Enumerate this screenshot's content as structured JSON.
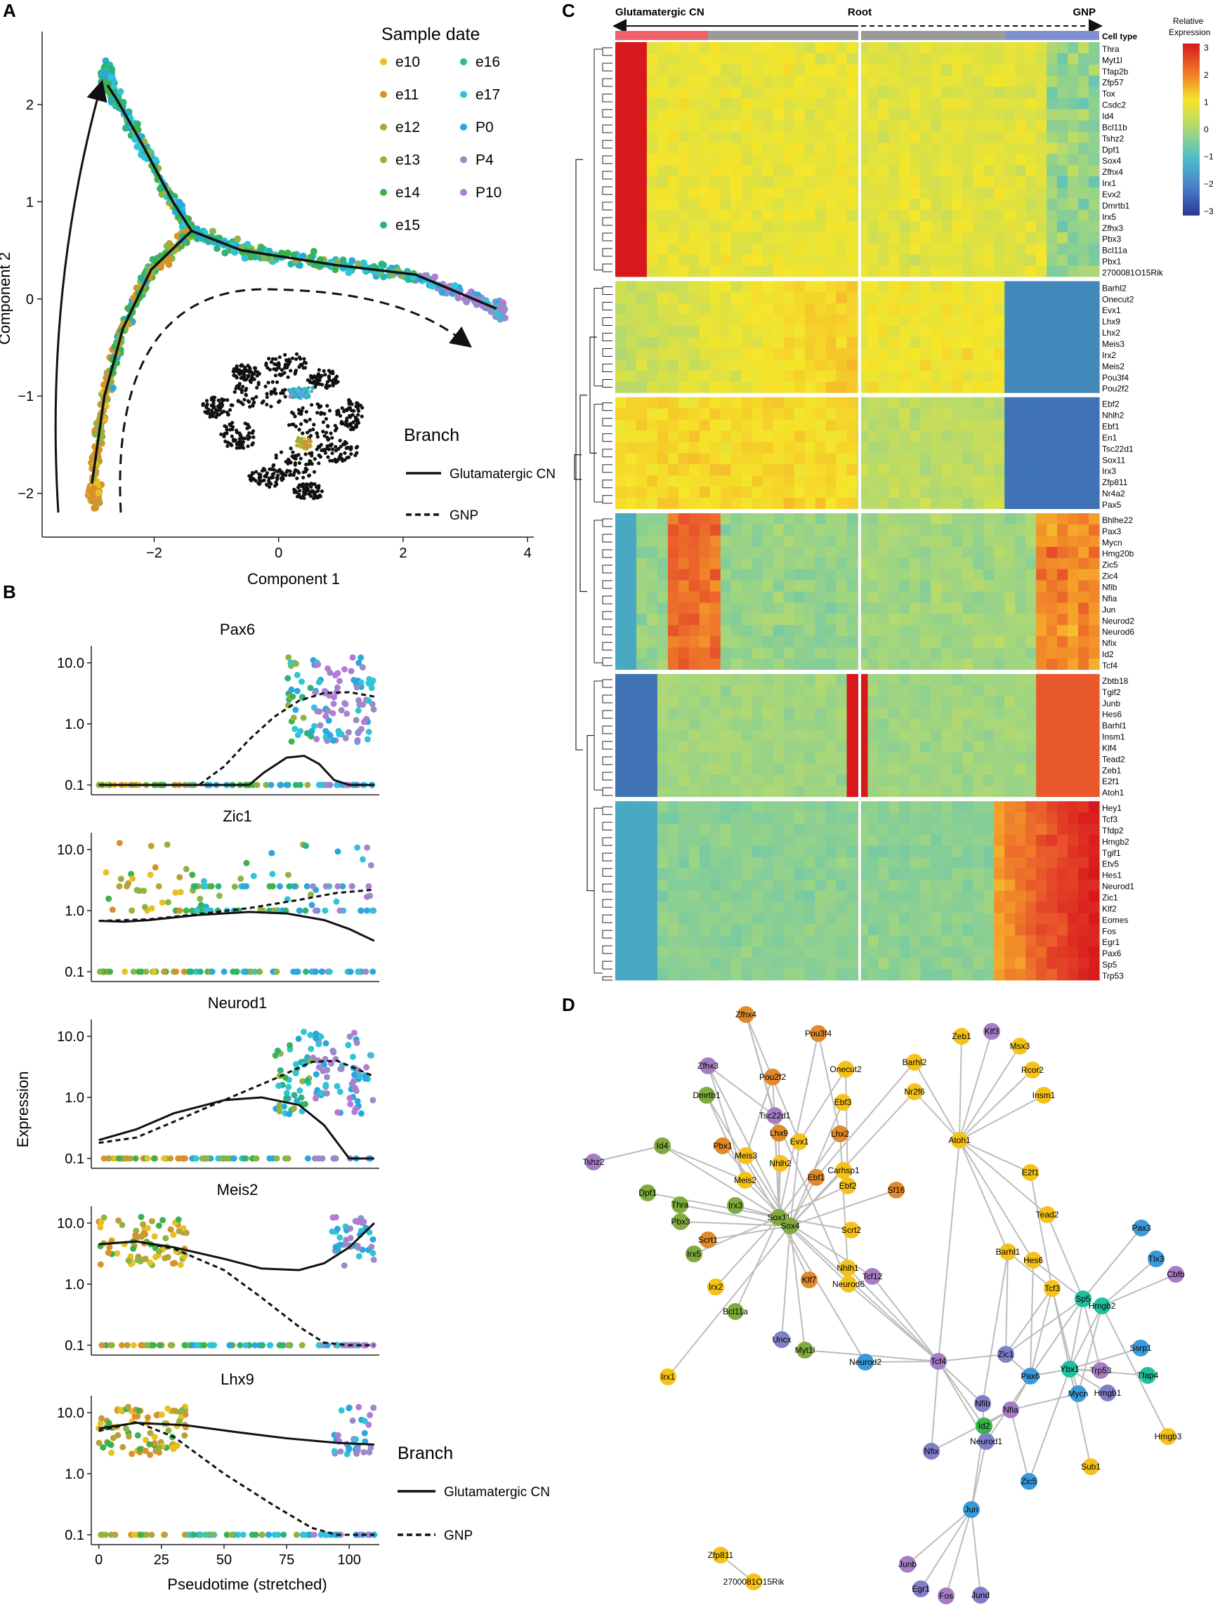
{
  "panel_letters": [
    "A",
    "B",
    "C",
    "D"
  ],
  "sample_dates": [
    {
      "label": "e10",
      "color": "#e8c020"
    },
    {
      "label": "e11",
      "color": "#d9912c"
    },
    {
      "label": "e12",
      "color": "#b9a13a"
    },
    {
      "label": "e13",
      "color": "#8fb443"
    },
    {
      "label": "e14",
      "color": "#3bb34a"
    },
    {
      "label": "e15",
      "color": "#2db37a"
    },
    {
      "label": "e16",
      "color": "#24b9a5"
    },
    {
      "label": "e17",
      "color": "#30c5d6"
    },
    {
      "label": "P0",
      "color": "#2aa7dd"
    },
    {
      "label": "P4",
      "color": "#9d89c7"
    },
    {
      "label": "P10",
      "color": "#b27cd6"
    }
  ],
  "chart_data": [
    {
      "id": "A",
      "type": "scatter",
      "title": "",
      "xlabel": "Component 1",
      "ylabel": "Component 2",
      "xlim": [
        -3.8,
        4.1
      ],
      "ylim": [
        -2.45,
        2.75
      ],
      "xticks": [
        -2,
        0,
        2,
        4
      ],
      "yticks": [
        -2,
        -1,
        0,
        1,
        2
      ],
      "legend_title": "Sample date",
      "branch_legend_title": "Branch",
      "branches": [
        {
          "name": "Glutamatergic CN",
          "style": "solid"
        },
        {
          "name": "GNP",
          "style": "dashed"
        }
      ],
      "trajectory": {
        "root": [
          -1.4,
          0.7
        ],
        "arms": [
          [
            [
              -1.4,
              0.7
            ],
            [
              -1.7,
              1.0
            ],
            [
              -2.2,
              1.6
            ],
            [
              -2.6,
              2.05
            ],
            [
              -2.75,
              2.2
            ]
          ],
          [
            [
              -1.4,
              0.7
            ],
            [
              -0.6,
              0.5
            ],
            [
              0.9,
              0.35
            ],
            [
              2.2,
              0.25
            ],
            [
              3.5,
              -0.1
            ]
          ],
          [
            [
              -1.4,
              0.7
            ],
            [
              -2.05,
              0.3
            ],
            [
              -2.5,
              -0.3
            ],
            [
              -2.8,
              -1.0
            ],
            [
              -3.0,
              -1.9
            ]
          ]
        ]
      }
    },
    {
      "id": "B",
      "type": "scatter",
      "xlabel": "Pseudotime (stretched)",
      "ylabel": "Expression",
      "xlim": [
        -3,
        112
      ],
      "xticks": [
        0,
        25,
        50,
        75,
        100
      ],
      "ylim_log": [
        0.1,
        20
      ],
      "branch_legend_title": "Branch",
      "branches": [
        {
          "name": "Glutamatergic CN",
          "style": "solid"
        },
        {
          "name": "GNP",
          "style": "dashed"
        }
      ],
      "genes": [
        {
          "name": "Pax6",
          "yticks": [
            "10.0",
            "1.0",
            "0.1"
          ],
          "solid": [
            [
              0,
              0.1
            ],
            [
              30,
              0.1
            ],
            [
              60,
              0.1
            ],
            [
              66,
              0.16
            ],
            [
              75,
              0.28
            ],
            [
              82,
              0.3
            ],
            [
              88,
              0.22
            ],
            [
              94,
              0.12
            ],
            [
              100,
              0.1
            ],
            [
              110,
              0.1
            ]
          ],
          "dashed": [
            [
              0,
              0.1
            ],
            [
              40,
              0.1
            ],
            [
              50,
              0.2
            ],
            [
              60,
              0.55
            ],
            [
              70,
              1.3
            ],
            [
              80,
              2.4
            ],
            [
              90,
              3.2
            ],
            [
              100,
              3.3
            ],
            [
              110,
              2.8
            ]
          ]
        },
        {
          "name": "Zic1",
          "yticks": [
            "10.0",
            "1.0",
            "0.1"
          ],
          "solid": [
            [
              0,
              0.68
            ],
            [
              10,
              0.66
            ],
            [
              20,
              0.7
            ],
            [
              40,
              0.85
            ],
            [
              60,
              0.95
            ],
            [
              75,
              0.9
            ],
            [
              90,
              0.7
            ],
            [
              100,
              0.5
            ],
            [
              110,
              0.32
            ]
          ],
          "dashed": [
            [
              0,
              0.68
            ],
            [
              20,
              0.72
            ],
            [
              40,
              0.88
            ],
            [
              60,
              1.1
            ],
            [
              80,
              1.5
            ],
            [
              95,
              1.95
            ],
            [
              110,
              2.2
            ]
          ]
        },
        {
          "name": "Neurod1",
          "yticks": [
            "10.0",
            "1.0",
            "0.1"
          ],
          "solid": [
            [
              0,
              0.2
            ],
            [
              15,
              0.3
            ],
            [
              30,
              0.55
            ],
            [
              50,
              0.9
            ],
            [
              65,
              1.0
            ],
            [
              80,
              0.75
            ],
            [
              90,
              0.35
            ],
            [
              100,
              0.1
            ],
            [
              110,
              0.1
            ]
          ],
          "dashed": [
            [
              0,
              0.18
            ],
            [
              15,
              0.22
            ],
            [
              30,
              0.4
            ],
            [
              50,
              0.9
            ],
            [
              70,
              2.0
            ],
            [
              85,
              3.8
            ],
            [
              95,
              4.0
            ],
            [
              110,
              2.2
            ]
          ]
        },
        {
          "name": "Meis2",
          "yticks": [
            "10.0",
            "1.0",
            "0.1"
          ],
          "solid": [
            [
              0,
              4.5
            ],
            [
              15,
              5.0
            ],
            [
              30,
              4.0
            ],
            [
              50,
              2.6
            ],
            [
              65,
              1.8
            ],
            [
              80,
              1.7
            ],
            [
              90,
              2.2
            ],
            [
              100,
              4.0
            ],
            [
              110,
              10.0
            ]
          ],
          "dashed": [
            [
              0,
              4.5
            ],
            [
              15,
              5.0
            ],
            [
              30,
              3.8
            ],
            [
              50,
              1.7
            ],
            [
              65,
              0.6
            ],
            [
              80,
              0.2
            ],
            [
              90,
              0.11
            ],
            [
              100,
              0.1
            ],
            [
              110,
              0.1
            ]
          ]
        },
        {
          "name": "Lhx9",
          "yticks": [
            "10.0",
            "1.0",
            "0.1"
          ],
          "solid": [
            [
              0,
              5.5
            ],
            [
              15,
              6.8
            ],
            [
              35,
              6.2
            ],
            [
              55,
              4.8
            ],
            [
              75,
              3.8
            ],
            [
              95,
              3.2
            ],
            [
              110,
              3.0
            ]
          ],
          "dashed": [
            [
              0,
              5.0
            ],
            [
              15,
              7.0
            ],
            [
              30,
              4.0
            ],
            [
              50,
              1.0
            ],
            [
              70,
              0.3
            ],
            [
              85,
              0.13
            ],
            [
              95,
              0.1
            ],
            [
              110,
              0.1
            ]
          ]
        }
      ]
    },
    {
      "id": "C",
      "type": "heatmap",
      "top_labels": {
        "left": "Glutamatergic CN",
        "center": "Root",
        "right": "GNP"
      },
      "cell_type_label": "Cell type",
      "colorbar": {
        "title_line1": "Relative",
        "title_line2": "Expression",
        "ticks": [
          "3",
          "2",
          "1",
          "0",
          "−1",
          "−2",
          "−3"
        ]
      },
      "clusters": [
        {
          "genes": [
            "Thra",
            "Myt1l",
            "Tfap2b",
            "Zfp57",
            "Tox",
            "Csdc2",
            "Id4",
            "Bcl11b",
            "Tshz2",
            "Dpf1",
            "Sox4",
            "Zfhx4",
            "Irx1",
            "Evx2",
            "Dmrtb1",
            "Irx5",
            "Zfhx3",
            "Pbx3",
            "Bcl11a",
            "Pbx1",
            "2700081O15Rik"
          ]
        },
        {
          "genes": [
            "Barhl2",
            "Onecut2",
            "Evx1",
            "Lhx9",
            "Lhx2",
            "Meis3",
            "Irx2",
            "Meis2",
            "Pou3f4",
            "Pou2f2"
          ]
        },
        {
          "genes": [
            "Ebf2",
            "Nhlh2",
            "Ebf1",
            "En1",
            "Tsc22d1",
            "Sox11",
            "Irx3",
            "Zfp811",
            "Nr4a2",
            "Pax5"
          ]
        },
        {
          "genes": [
            "Bhlhe22",
            "Pax3",
            "Mycn",
            "Hmg20b",
            "Zic5",
            "Zic4",
            "Nfib",
            "Nfia",
            "Jun",
            "Neurod2",
            "Neurod6",
            "Nfix",
            "Id2",
            "Tcf4"
          ]
        },
        {
          "genes": [
            "Zbtb18",
            "Tgif2",
            "Junb",
            "Hes6",
            "Barhl1",
            "Insm1",
            "Klf4",
            "Tead2",
            "Zeb1",
            "E2f1",
            "Atoh1"
          ]
        },
        {
          "genes": [
            "Hey1",
            "Tcf3",
            "Tfdp2",
            "Hmgb2",
            "Tgif1",
            "Etv5",
            "Hes1",
            "Neurod1",
            "Zic1",
            "Klf2",
            "Eomes",
            "Fos",
            "Egr1",
            "Pax6",
            "Sp5",
            "Trp53"
          ]
        }
      ]
    },
    {
      "id": "D",
      "type": "network",
      "nodes": [
        {
          "id": "Zfhx4",
          "c": "#e08a2a"
        },
        {
          "id": "Pou3f4",
          "c": "#e08a2a"
        },
        {
          "id": "Zfhx3",
          "c": "#a67dc4"
        },
        {
          "id": "Pou2f2",
          "c": "#e08a2a"
        },
        {
          "id": "Onecut2",
          "c": "#f5c21a"
        },
        {
          "id": "Barhl2",
          "c": "#f5c21a"
        },
        {
          "id": "Zeb1",
          "c": "#f5c21a"
        },
        {
          "id": "Klf3",
          "c": "#a67dc4"
        },
        {
          "id": "Msx3",
          "c": "#f5c21a"
        },
        {
          "id": "Rcor2",
          "c": "#f5c21a"
        },
        {
          "id": "Insm1",
          "c": "#f5c21a"
        },
        {
          "id": "Dmrtb1",
          "c": "#7faa3d"
        },
        {
          "id": "Ebf3",
          "c": "#f5c21a"
        },
        {
          "id": "Nr2f6",
          "c": "#f5c21a"
        },
        {
          "id": "Tsc22d1",
          "c": "#a67dc4"
        },
        {
          "id": "Id4",
          "c": "#7faa3d"
        },
        {
          "id": "Pbx1",
          "c": "#e08a2a"
        },
        {
          "id": "Lhx9",
          "c": "#e08a2a"
        },
        {
          "id": "Evx1",
          "c": "#f5c21a"
        },
        {
          "id": "Lhx2",
          "c": "#e08a2a"
        },
        {
          "id": "Atoh1",
          "c": "#f5c21a"
        },
        {
          "id": "Tshz2",
          "c": "#a67dc4"
        },
        {
          "id": "Meis3",
          "c": "#f5c21a"
        },
        {
          "id": "Nhlh2",
          "c": "#f5c21a"
        },
        {
          "id": "Carhsp1",
          "c": "#f5c21a"
        },
        {
          "id": "Ebf1",
          "c": "#e08a2a"
        },
        {
          "id": "Ebf2",
          "c": "#f5c21a"
        },
        {
          "id": "Meis2",
          "c": "#f5c21a"
        },
        {
          "id": "Sf16",
          "c": "#e08a2a"
        },
        {
          "id": "E2f1",
          "c": "#f5c21a"
        },
        {
          "id": "Dpf1",
          "c": "#7faa3d"
        },
        {
          "id": "Thra",
          "c": "#7faa3d"
        },
        {
          "id": "Irx3",
          "c": "#7faa3d"
        },
        {
          "id": "Pbx3",
          "c": "#7faa3d"
        },
        {
          "id": "Sox11",
          "c": "#7faa3d"
        },
        {
          "id": "Sox4",
          "c": "#7faa3d"
        },
        {
          "id": "Scrt2",
          "c": "#f5c21a"
        },
        {
          "id": "Tead2",
          "c": "#f5c21a"
        },
        {
          "id": "Pax3",
          "c": "#3a9ad9"
        },
        {
          "id": "Scrt1",
          "c": "#e08a2a"
        },
        {
          "id": "Irx5",
          "c": "#7faa3d"
        },
        {
          "id": "Barhl1",
          "c": "#f5c21a"
        },
        {
          "id": "Hes6",
          "c": "#f5c21a"
        },
        {
          "id": "Tlx3",
          "c": "#3a9ad9"
        },
        {
          "id": "Nhlh1",
          "c": "#f5c21a"
        },
        {
          "id": "Tcf12",
          "c": "#a67dc4"
        },
        {
          "id": "Cbfb",
          "c": "#a67dc4"
        },
        {
          "id": "Klf7",
          "c": "#e08a2a"
        },
        {
          "id": "Neurod6",
          "c": "#f5c21a"
        },
        {
          "id": "Irx2",
          "c": "#f5c21a"
        },
        {
          "id": "Tcf3",
          "c": "#f5c21a"
        },
        {
          "id": "Sp5",
          "c": "#1fbfa0"
        },
        {
          "id": "Hmgb2",
          "c": "#1fbfa0"
        },
        {
          "id": "Bcl11a",
          "c": "#7faa3d"
        },
        {
          "id": "Uncx",
          "c": "#7f7fc8"
        },
        {
          "id": "Myt1l",
          "c": "#7faa3d"
        },
        {
          "id": "Ssrp1",
          "c": "#3a9ad9"
        },
        {
          "id": "Neurod2",
          "c": "#3a9ad9"
        },
        {
          "id": "Tcf4",
          "c": "#a67dc4"
        },
        {
          "id": "Zic1",
          "c": "#7f7fc8"
        },
        {
          "id": "Ybx1",
          "c": "#1fbfa0"
        },
        {
          "id": "Trp53",
          "c": "#a67dc4"
        },
        {
          "id": "Tfap4",
          "c": "#1fbfa0"
        },
        {
          "id": "Irx1",
          "c": "#f5c21a"
        },
        {
          "id": "Pax6",
          "c": "#3a9ad9"
        },
        {
          "id": "Hmgb1",
          "c": "#7f7fc8"
        },
        {
          "id": "Mycn",
          "c": "#3a9ad9"
        },
        {
          "id": "Nfib",
          "c": "#7f7fc8"
        },
        {
          "id": "Nfia",
          "c": "#a67dc4"
        },
        {
          "id": "Id2",
          "c": "#3bb34a"
        },
        {
          "id": "Hmgb3",
          "c": "#f5c21a"
        },
        {
          "id": "Nfix",
          "c": "#7f7fc8"
        },
        {
          "id": "Neurod1",
          "c": "#7f7fc8"
        },
        {
          "id": "Sub1",
          "c": "#f5c21a"
        },
        {
          "id": "Zic5",
          "c": "#3a9ad9"
        },
        {
          "id": "Jun",
          "c": "#3a9ad9"
        },
        {
          "id": "Zfp811",
          "c": "#f5c21a"
        },
        {
          "id": "2700081O15Rik",
          "c": "#f5c21a"
        },
        {
          "id": "Junb",
          "c": "#a67dc4"
        },
        {
          "id": "Egr1",
          "c": "#7f7fc8"
        },
        {
          "id": "Fos",
          "c": "#a67dc4"
        },
        {
          "id": "Jund",
          "c": "#7f7fc8"
        }
      ]
    }
  ]
}
